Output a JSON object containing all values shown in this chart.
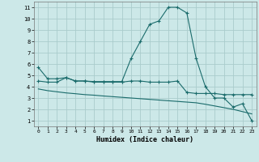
{
  "xlabel": "Humidex (Indice chaleur)",
  "bg_color": "#cce8e8",
  "grid_color": "#aacccc",
  "line_color": "#1a6b6b",
  "xlim": [
    -0.5,
    23.5
  ],
  "ylim": [
    0.5,
    11.5
  ],
  "xticks": [
    0,
    1,
    2,
    3,
    4,
    5,
    6,
    7,
    8,
    9,
    10,
    11,
    12,
    13,
    14,
    15,
    16,
    17,
    18,
    19,
    20,
    21,
    22,
    23
  ],
  "yticks": [
    1,
    2,
    3,
    4,
    5,
    6,
    7,
    8,
    9,
    10,
    11
  ],
  "curve1_x": [
    0,
    1,
    2,
    3,
    4,
    5,
    6,
    7,
    8,
    9,
    10,
    11,
    12,
    13,
    14,
    15,
    16,
    17,
    18,
    19,
    20,
    21,
    22,
    23
  ],
  "curve1_y": [
    5.7,
    4.7,
    4.7,
    4.8,
    4.5,
    4.5,
    4.45,
    4.45,
    4.45,
    4.45,
    6.5,
    8.0,
    9.5,
    9.8,
    11.0,
    11.0,
    10.5,
    6.5,
    4.0,
    3.0,
    3.0,
    2.2,
    2.5,
    1.0
  ],
  "curve2_x": [
    0,
    1,
    2,
    3,
    4,
    5,
    6,
    7,
    8,
    9,
    10,
    11,
    12,
    13,
    14,
    15,
    16,
    17,
    18,
    19,
    20,
    21,
    22,
    23
  ],
  "curve2_y": [
    4.5,
    4.4,
    4.4,
    4.8,
    4.5,
    4.5,
    4.4,
    4.4,
    4.4,
    4.4,
    4.5,
    4.5,
    4.4,
    4.4,
    4.4,
    4.5,
    3.5,
    3.4,
    3.4,
    3.4,
    3.3,
    3.3,
    3.3,
    3.3
  ],
  "curve3_x": [
    0,
    1,
    2,
    3,
    4,
    5,
    6,
    7,
    8,
    9,
    10,
    11,
    12,
    13,
    14,
    15,
    16,
    17,
    18,
    19,
    20,
    21,
    22,
    23
  ],
  "curve3_y": [
    3.8,
    3.65,
    3.55,
    3.45,
    3.38,
    3.3,
    3.25,
    3.18,
    3.12,
    3.06,
    3.0,
    2.94,
    2.88,
    2.82,
    2.76,
    2.7,
    2.64,
    2.58,
    2.45,
    2.3,
    2.15,
    2.0,
    1.8,
    1.6
  ]
}
